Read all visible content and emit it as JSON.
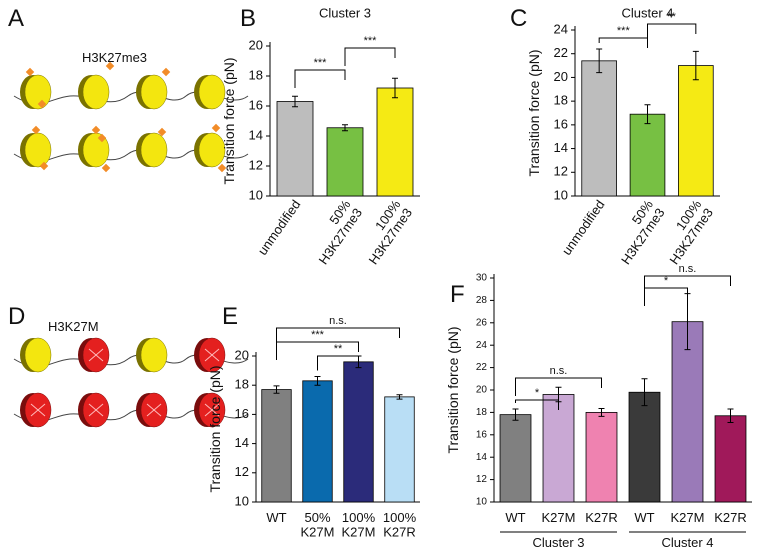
{
  "panel_labels": [
    "A",
    "B",
    "C",
    "D",
    "E",
    "F"
  ],
  "diagrams": [
    {
      "label": "H3K27me3"
    },
    {
      "label": "H3K27M"
    }
  ],
  "chart_data": [
    {
      "type": "bar",
      "title": "Cluster 3",
      "y_label": "Transition force (pN)",
      "categories": [
        "unmodified",
        "50%\nH3K27me3",
        "100%\nH3K27me3"
      ],
      "values": [
        16.3,
        14.55,
        17.2
      ],
      "errors": [
        0.35,
        0.2,
        0.65
      ],
      "colors": [
        "#bdbdbd",
        "#77c043",
        "#f5ea14"
      ],
      "ylim": [
        10,
        20
      ],
      "yticks": [
        10,
        12,
        14,
        16,
        18,
        20
      ],
      "annotations": [
        "***",
        "***"
      ]
    },
    {
      "type": "bar",
      "title": "Cluster 4",
      "y_label": "Transition force (pN)",
      "categories": [
        "unmodified",
        "50%\nH3K27me3",
        "100%\nH3K27me3"
      ],
      "values": [
        21.4,
        16.9,
        21.0
      ],
      "errors": [
        1.0,
        0.8,
        1.2
      ],
      "colors": [
        "#bdbdbd",
        "#77c043",
        "#f5ea14"
      ],
      "ylim": [
        10,
        24
      ],
      "yticks": [
        10,
        12,
        14,
        16,
        18,
        20,
        22,
        24
      ],
      "annotations": [
        "***",
        "**"
      ]
    },
    {
      "type": "bar",
      "y_label": "Transition force (pN)",
      "categories": [
        "WT",
        "50%\nK27M",
        "100%\nK27M",
        "100%\nK27R"
      ],
      "values": [
        17.7,
        18.3,
        19.6,
        17.2
      ],
      "errors": [
        0.25,
        0.3,
        0.4,
        0.15
      ],
      "colors": [
        "#808080",
        "#0a6aad",
        "#2b2b7a",
        "#b9def5"
      ],
      "ylim": [
        10,
        20
      ],
      "yticks": [
        10,
        12,
        14,
        16,
        18,
        20
      ],
      "annotations": [
        "n.s.",
        "***",
        "**"
      ]
    },
    {
      "type": "bar",
      "y_label": "Transition force (pN)",
      "categories": [
        "WT",
        "K27M",
        "K27R",
        "WT",
        "K27M",
        "K27R"
      ],
      "groups": [
        "Cluster 3",
        "Cluster 4"
      ],
      "values": [
        17.8,
        19.6,
        18.0,
        19.8,
        26.1,
        17.7
      ],
      "errors": [
        0.5,
        0.65,
        0.35,
        1.2,
        2.5,
        0.6
      ],
      "colors": [
        "#808080",
        "#c9a8d4",
        "#ef82b0",
        "#3a3a3a",
        "#9a7ab8",
        "#a0195a"
      ],
      "ylim": [
        10,
        30
      ],
      "yticks": [
        10,
        12,
        14,
        16,
        18,
        20,
        22,
        24,
        26,
        28,
        30
      ],
      "annotations": [
        "*",
        "n.s.",
        "*",
        "n.s."
      ]
    }
  ]
}
